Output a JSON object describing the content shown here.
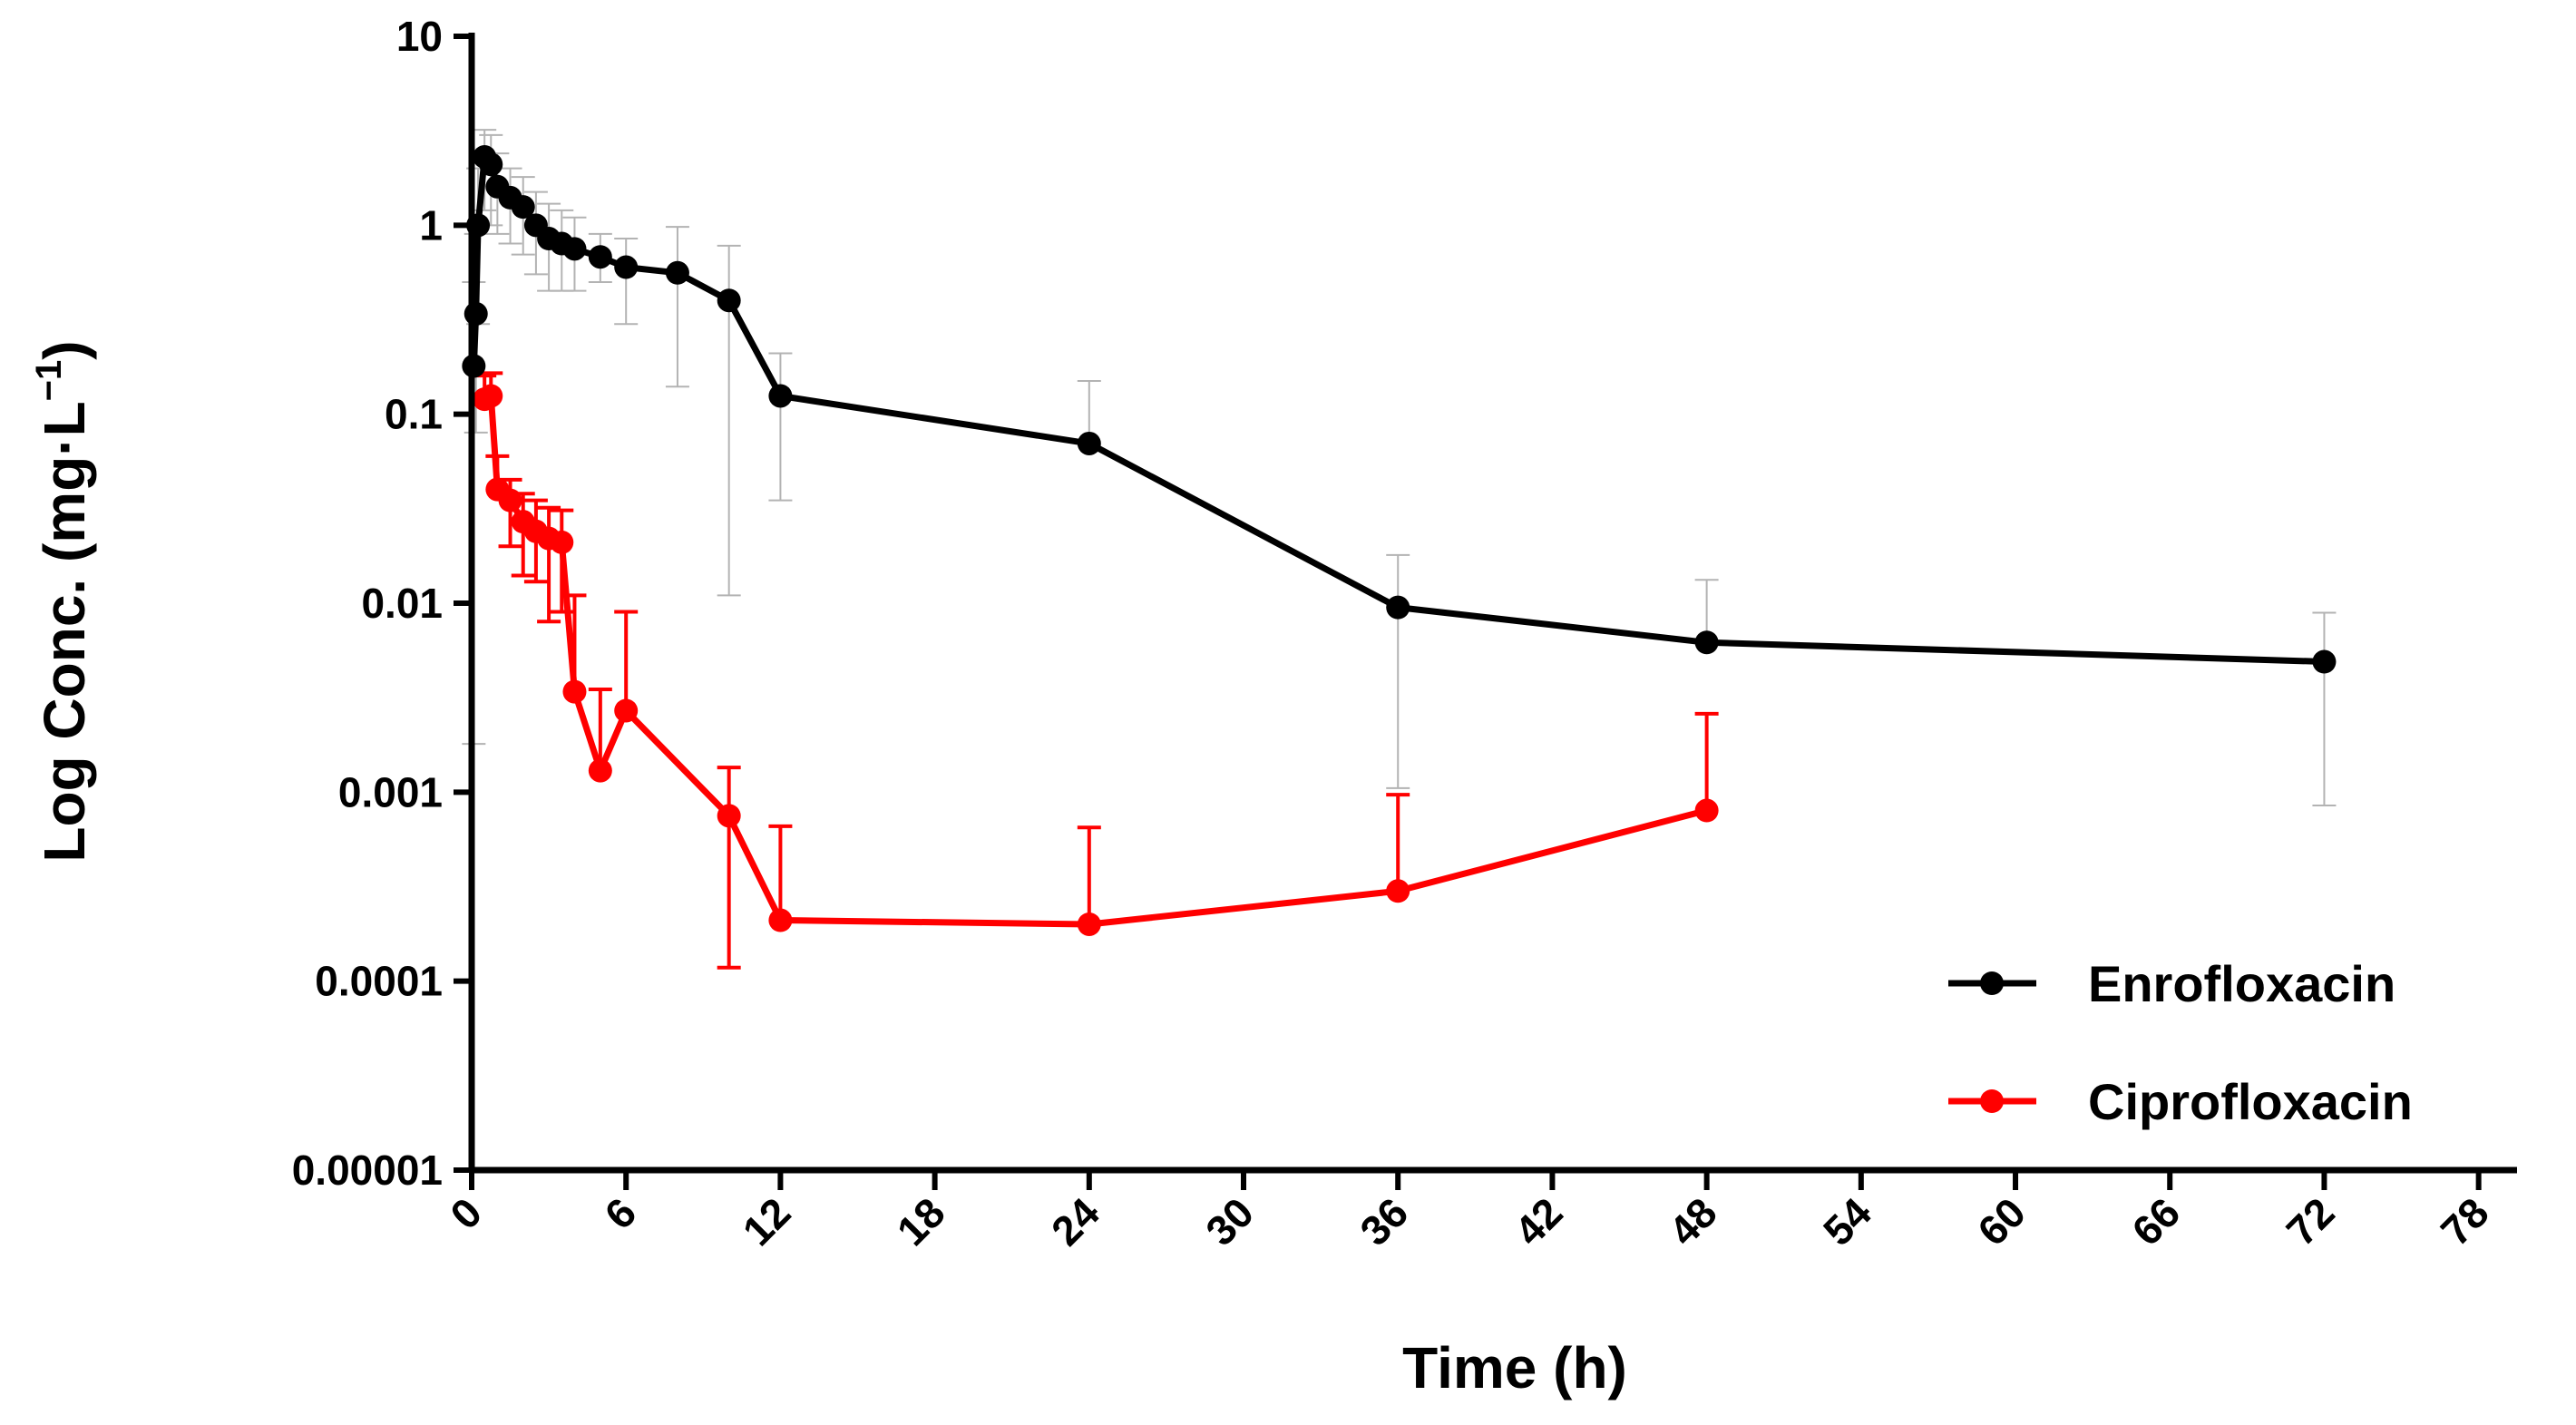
{
  "chart_data": {
    "type": "line",
    "title": "",
    "xlabel": "Time (h)",
    "ylabel": "Log Conc. (mg·L",
    "ylabel_sup": "−1",
    "ylabel_close": ")",
    "yscale": "log",
    "xlim": [
      0,
      79
    ],
    "ylim": [
      1e-05,
      10
    ],
    "x_ticks": [
      "0",
      "6",
      "12",
      "18",
      "24",
      "30",
      "36",
      "42",
      "48",
      "54",
      "60",
      "66",
      "72",
      "78"
    ],
    "y_ticks": [
      "10",
      "1",
      "0.1",
      "0.01",
      "0.001",
      "0.0001",
      "0.00001"
    ],
    "legend_position": "bottom-right",
    "series": [
      {
        "name": "Enrofloxacin",
        "color": "#000000",
        "error_color": "#b3b3b3",
        "points": [
          {
            "x": 0.083,
            "y": 0.18,
            "err_lo": 0.0018,
            "err_hi": 0.5
          },
          {
            "x": 0.167,
            "y": 0.34,
            "err_lo": 0.08,
            "err_hi": 0.9
          },
          {
            "x": 0.25,
            "y": 1.0,
            "err_lo": 0.3,
            "err_hi": 2.0
          },
          {
            "x": 0.5,
            "y": 2.3,
            "err_lo": 1.2,
            "err_hi": 3.2
          },
          {
            "x": 0.75,
            "y": 2.1,
            "err_lo": 1.0,
            "err_hi": 3.0
          },
          {
            "x": 1.0,
            "y": 1.6,
            "err_lo": 0.9,
            "err_hi": 2.4
          },
          {
            "x": 1.5,
            "y": 1.4,
            "err_lo": 0.8,
            "err_hi": 2.0
          },
          {
            "x": 2.0,
            "y": 1.25,
            "err_lo": 0.7,
            "err_hi": 1.8
          },
          {
            "x": 2.5,
            "y": 1.0,
            "err_lo": 0.55,
            "err_hi": 1.5
          },
          {
            "x": 3.0,
            "y": 0.85,
            "err_lo": 0.45,
            "err_hi": 1.3
          },
          {
            "x": 3.5,
            "y": 0.8,
            "err_lo": 0.45,
            "err_hi": 1.2
          },
          {
            "x": 4.0,
            "y": 0.75,
            "err_lo": 0.45,
            "err_hi": 1.1
          },
          {
            "x": 5.0,
            "y": 0.68,
            "err_lo": 0.5,
            "err_hi": 0.9
          },
          {
            "x": 6.0,
            "y": 0.6,
            "err_lo": 0.3,
            "err_hi": 0.85
          },
          {
            "x": 8.0,
            "y": 0.56,
            "err_lo": 0.14,
            "err_hi": 0.98
          },
          {
            "x": 10.0,
            "y": 0.4,
            "err_lo": 0.011,
            "err_hi": 0.78
          },
          {
            "x": 12.0,
            "y": 0.125,
            "err_lo": 0.035,
            "err_hi": 0.21
          },
          {
            "x": 24.0,
            "y": 0.07,
            "err_lo": 0.07,
            "err_hi": 0.15
          },
          {
            "x": 36.0,
            "y": 0.0095,
            "err_lo": 0.00105,
            "err_hi": 0.018
          },
          {
            "x": 48.0,
            "y": 0.0062,
            "err_lo": 0.0062,
            "err_hi": 0.0133
          },
          {
            "x": 72.0,
            "y": 0.0049,
            "err_lo": 0.00085,
            "err_hi": 0.0089
          }
        ]
      },
      {
        "name": "Ciprofloxacin",
        "color": "#ff0000",
        "error_color": "#ff0000",
        "points": [
          {
            "x": 0.5,
            "y": 0.12,
            "err_lo": 0.12,
            "err_hi": 0.16
          },
          {
            "x": 0.75,
            "y": 0.125,
            "err_lo": 0.125,
            "err_hi": 0.165
          },
          {
            "x": 1.0,
            "y": 0.04,
            "err_lo": 0.04,
            "err_hi": 0.06
          },
          {
            "x": 1.5,
            "y": 0.035,
            "err_lo": 0.02,
            "err_hi": 0.045
          },
          {
            "x": 2.0,
            "y": 0.027,
            "err_lo": 0.014,
            "err_hi": 0.038
          },
          {
            "x": 2.5,
            "y": 0.024,
            "err_lo": 0.013,
            "err_hi": 0.035
          },
          {
            "x": 3.0,
            "y": 0.022,
            "err_lo": 0.008,
            "err_hi": 0.032
          },
          {
            "x": 3.5,
            "y": 0.021,
            "err_lo": 0.009,
            "err_hi": 0.031
          },
          {
            "x": 4.0,
            "y": 0.0034,
            "err_lo": 0.0034,
            "err_hi": 0.011
          },
          {
            "x": 5.0,
            "y": 0.0013,
            "err_lo": 0.0013,
            "err_hi": 0.0035
          },
          {
            "x": 6.0,
            "y": 0.0027,
            "err_lo": 0.0027,
            "err_hi": 0.009
          },
          {
            "x": 10.0,
            "y": 0.00075,
            "err_lo": 0.000118,
            "err_hi": 0.00135
          },
          {
            "x": 12.0,
            "y": 0.00021,
            "err_lo": 0.00021,
            "err_hi": 0.00066
          },
          {
            "x": 24.0,
            "y": 0.0002,
            "err_lo": 0.0002,
            "err_hi": 0.00065
          },
          {
            "x": 36.0,
            "y": 0.0003,
            "err_lo": 0.0003,
            "err_hi": 0.00097
          },
          {
            "x": 48.0,
            "y": 0.0008,
            "err_lo": 0.0008,
            "err_hi": 0.0026
          }
        ]
      }
    ]
  }
}
